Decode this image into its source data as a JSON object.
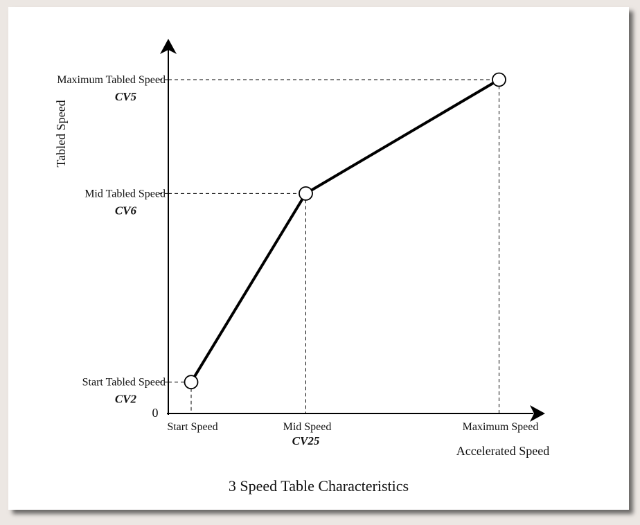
{
  "chart_data": {
    "type": "line",
    "title": "3 Speed Table Characteristics",
    "xlabel": "Accelerated Speed",
    "ylabel": "Tabled Speed",
    "origin_label": "0",
    "grid": false,
    "series": [
      {
        "points": [
          {
            "x": 0.066,
            "y": 0.094
          },
          {
            "x": 0.397,
            "y": 0.659
          },
          {
            "x": 0.955,
            "y": 1.0
          }
        ]
      }
    ],
    "x_ticks": [
      {
        "value": 0.066,
        "label": "Start Speed",
        "cv": ""
      },
      {
        "value": 0.397,
        "label": "Mid Speed",
        "cv": "CV25"
      },
      {
        "value": 0.955,
        "label": "Maximum Speed",
        "cv": ""
      }
    ],
    "y_ticks": [
      {
        "value": 0.094,
        "label": "Start Tabled Speed",
        "cv": "CV2"
      },
      {
        "value": 0.659,
        "label": "Mid Tabled Speed",
        "cv": "CV6"
      },
      {
        "value": 1.0,
        "label": "Maximum Tabled Speed",
        "cv": "CV5"
      }
    ]
  }
}
